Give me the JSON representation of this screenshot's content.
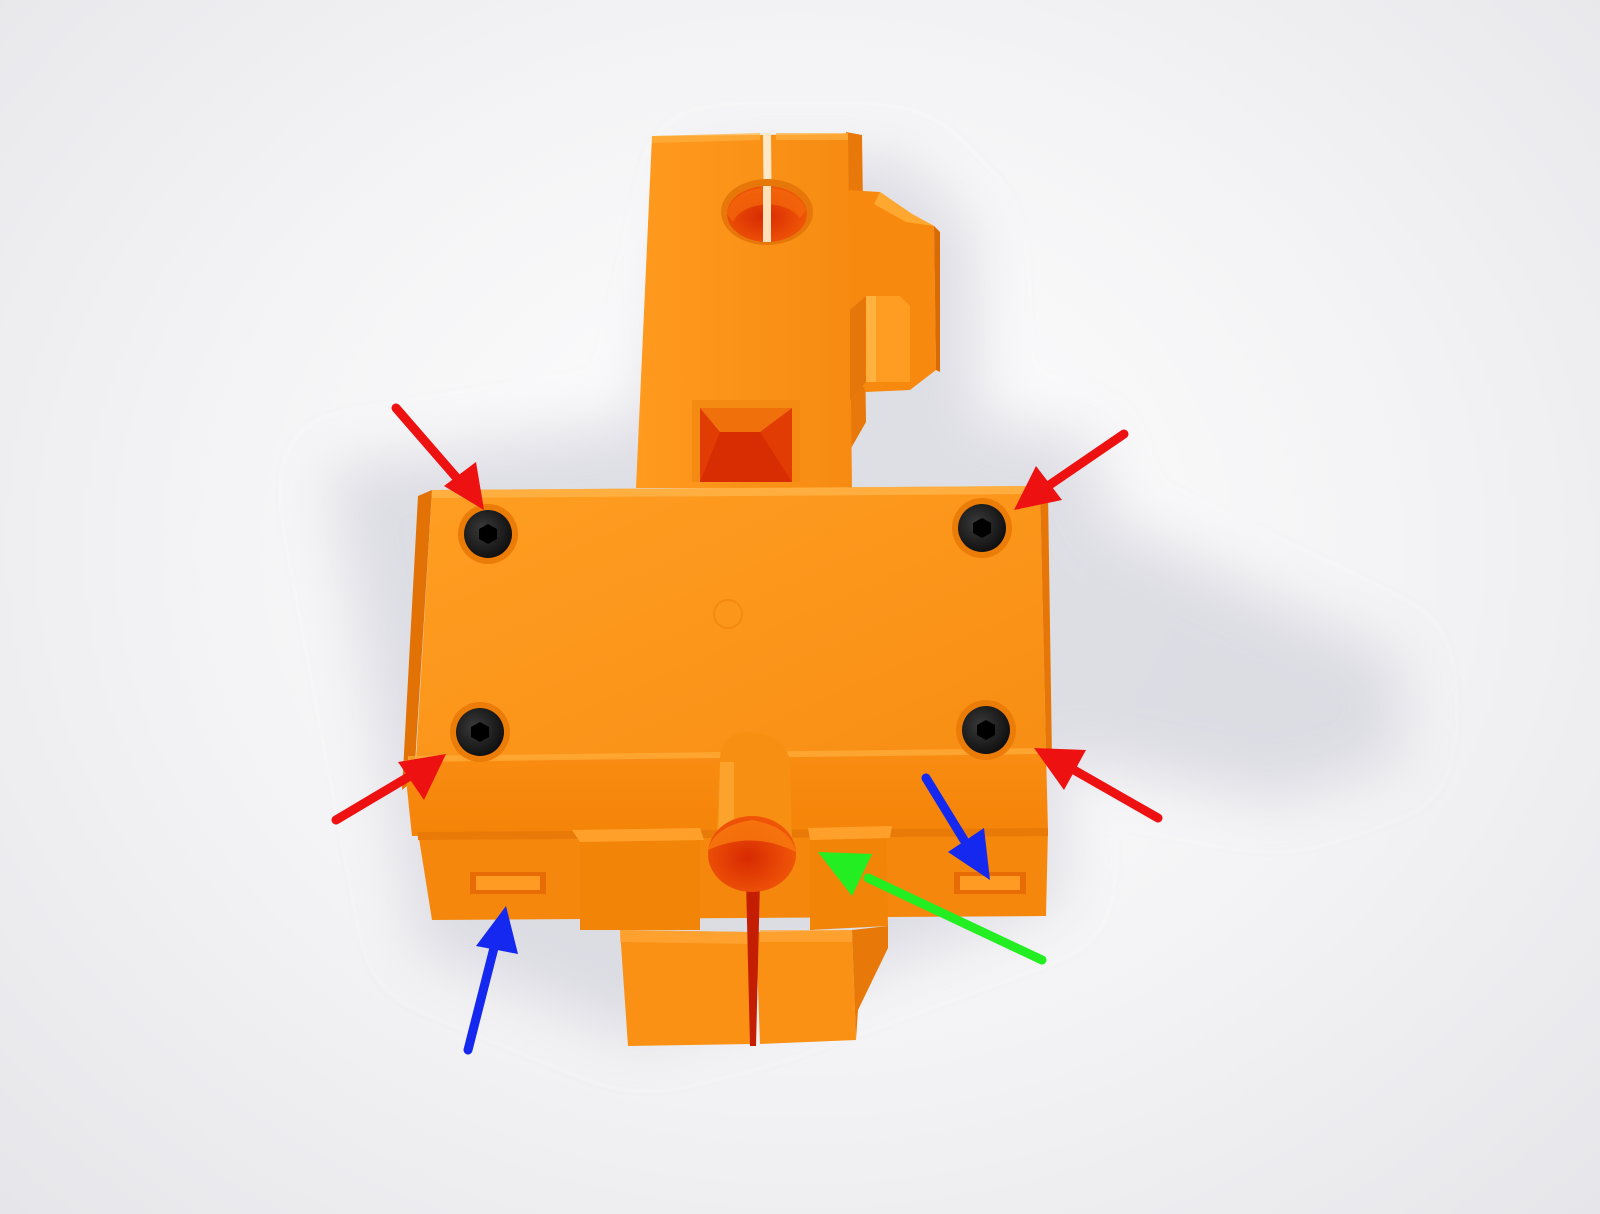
{
  "scene": {
    "subject": "orange-3d-printed-part",
    "background": "white-studio-backdrop"
  },
  "colors": {
    "part_light": "#FF9A1E",
    "part_mid": "#F4860F",
    "part_dark": "#E06F05",
    "hole_interior": "#E23A05",
    "screw": "#111111",
    "shadow": "#D2D2DC",
    "arrow_red": "#EE1111",
    "arrow_blue": "#1428F0",
    "arrow_green": "#22EE22"
  },
  "annotations": {
    "screws": {
      "arrow_color": "red",
      "count": 4
    },
    "nut_slots": {
      "arrow_color": "blue",
      "count": 2
    },
    "rod_hole": {
      "arrow_color": "green",
      "count": 1
    }
  }
}
